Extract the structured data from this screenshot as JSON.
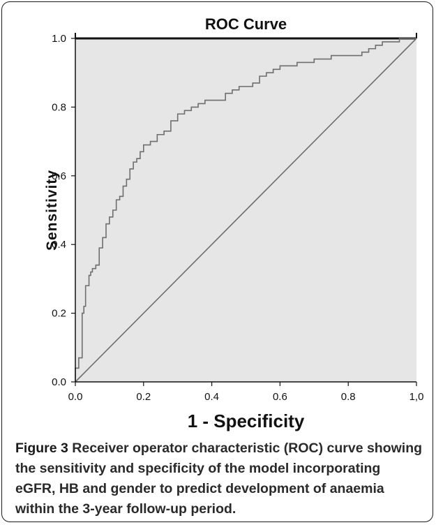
{
  "chart_data": {
    "type": "line",
    "title": "ROC Curve",
    "xlabel": "1 - Specificity",
    "ylabel": "Sensitivity",
    "xlim": [
      0,
      1
    ],
    "ylim": [
      0,
      1
    ],
    "x_ticks": [
      "0.0",
      "0.2",
      "0.4",
      "0.6",
      "0.8",
      "1,0"
    ],
    "y_ticks": [
      "0.0",
      "0.2",
      "0.4",
      "0.6",
      "0.8",
      "1.0"
    ],
    "background_color": "#e6e6e6",
    "line_color": "#6e6e6e",
    "series": [
      {
        "x": [
          0.0,
          0.0,
          0.01,
          0.01,
          0.02,
          0.02,
          0.025,
          0.03,
          0.03,
          0.04,
          0.045,
          0.05,
          0.06,
          0.07,
          0.08,
          0.09,
          0.1,
          0.11,
          0.12,
          0.13,
          0.14,
          0.15,
          0.16,
          0.17,
          0.18,
          0.19,
          0.2,
          0.22,
          0.24,
          0.26,
          0.28,
          0.3,
          0.32,
          0.34,
          0.36,
          0.38,
          0.4,
          0.42,
          0.44,
          0.46,
          0.48,
          0.5,
          0.52,
          0.54,
          0.56,
          0.58,
          0.6,
          0.65,
          0.7,
          0.75,
          0.8,
          0.84,
          0.86,
          0.88,
          0.9,
          0.92,
          0.95,
          1.0
        ],
        "y": [
          0.0,
          0.04,
          0.05,
          0.07,
          0.09,
          0.2,
          0.22,
          0.25,
          0.28,
          0.31,
          0.32,
          0.33,
          0.34,
          0.39,
          0.42,
          0.46,
          0.48,
          0.5,
          0.53,
          0.54,
          0.57,
          0.59,
          0.62,
          0.64,
          0.65,
          0.67,
          0.69,
          0.7,
          0.72,
          0.73,
          0.76,
          0.78,
          0.79,
          0.8,
          0.81,
          0.82,
          0.82,
          0.82,
          0.84,
          0.85,
          0.86,
          0.86,
          0.87,
          0.89,
          0.9,
          0.91,
          0.92,
          0.93,
          0.94,
          0.95,
          0.95,
          0.96,
          0.97,
          0.98,
          0.99,
          0.99,
          1.0,
          1.0
        ]
      },
      {
        "x": [
          0,
          1
        ],
        "y": [
          0,
          1
        ]
      }
    ]
  },
  "caption": {
    "label": "Figure 3",
    "text": "Receiver operator characteristic (ROC) curve showing the sensitivity and specificity of the model incorporating eGFR, HB and gender to predict development of anaemia within the 3-year follow-up period."
  }
}
